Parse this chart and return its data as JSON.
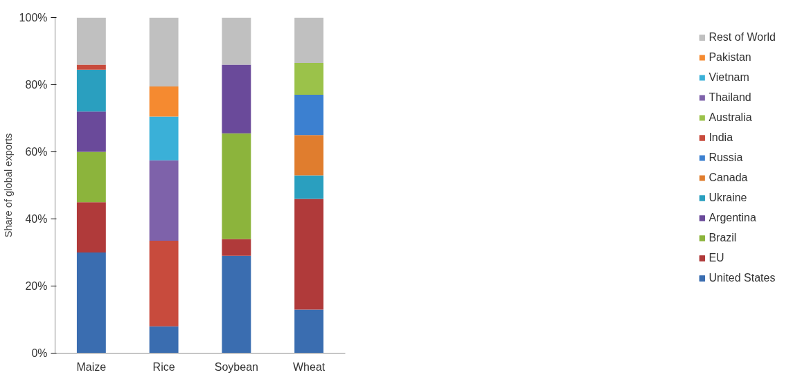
{
  "chart_data": {
    "type": "bar",
    "stacked": true,
    "ylabel": "Share of global exports",
    "categories": [
      "Maize",
      "Rice",
      "Soybean",
      "Wheat"
    ],
    "ylim": [
      0,
      100
    ],
    "yticks": [
      {
        "value": 0,
        "label": "0%"
      },
      {
        "value": 20,
        "label": "20%"
      },
      {
        "value": 40,
        "label": "40%"
      },
      {
        "value": 60,
        "label": "60%"
      },
      {
        "value": 80,
        "label": "80%"
      },
      {
        "value": 100,
        "label": "100%"
      }
    ],
    "grid": false,
    "legend": "right",
    "series": [
      {
        "name": "United States",
        "color": "#3a6db0",
        "values": [
          30,
          8,
          29,
          13
        ]
      },
      {
        "name": "EU",
        "color": "#b03a3a",
        "values": [
          15,
          null,
          5,
          33
        ]
      },
      {
        "name": "Brazil",
        "color": "#8cb43c",
        "values": [
          15,
          null,
          31.5,
          null
        ]
      },
      {
        "name": "Argentina",
        "color": "#6a4a9a",
        "values": [
          12,
          null,
          20.5,
          null
        ]
      },
      {
        "name": "Ukraine",
        "color": "#2a9fbf",
        "values": [
          12.5,
          null,
          null,
          7
        ]
      },
      {
        "name": "Canada",
        "color": "#e07d2e",
        "values": [
          null,
          null,
          null,
          12
        ]
      },
      {
        "name": "Russia",
        "color": "#3c80d0",
        "values": [
          null,
          null,
          null,
          12
        ]
      },
      {
        "name": "India",
        "color": "#c84b3d",
        "values": [
          1.5,
          25.5,
          null,
          null
        ]
      },
      {
        "name": "Australia",
        "color": "#9bc24a",
        "values": [
          null,
          null,
          null,
          9.5
        ]
      },
      {
        "name": "Thailand",
        "color": "#7e62aa",
        "values": [
          null,
          24,
          null,
          null
        ]
      },
      {
        "name": "Vietnam",
        "color": "#3ab0d8",
        "values": [
          null,
          13,
          null,
          null
        ]
      },
      {
        "name": "Pakistan",
        "color": "#f58a30",
        "values": [
          null,
          9,
          null,
          null
        ]
      },
      {
        "name": "Rest of World",
        "color": "#c0c0c0",
        "values": [
          14,
          20.5,
          14,
          13.5
        ]
      }
    ]
  }
}
